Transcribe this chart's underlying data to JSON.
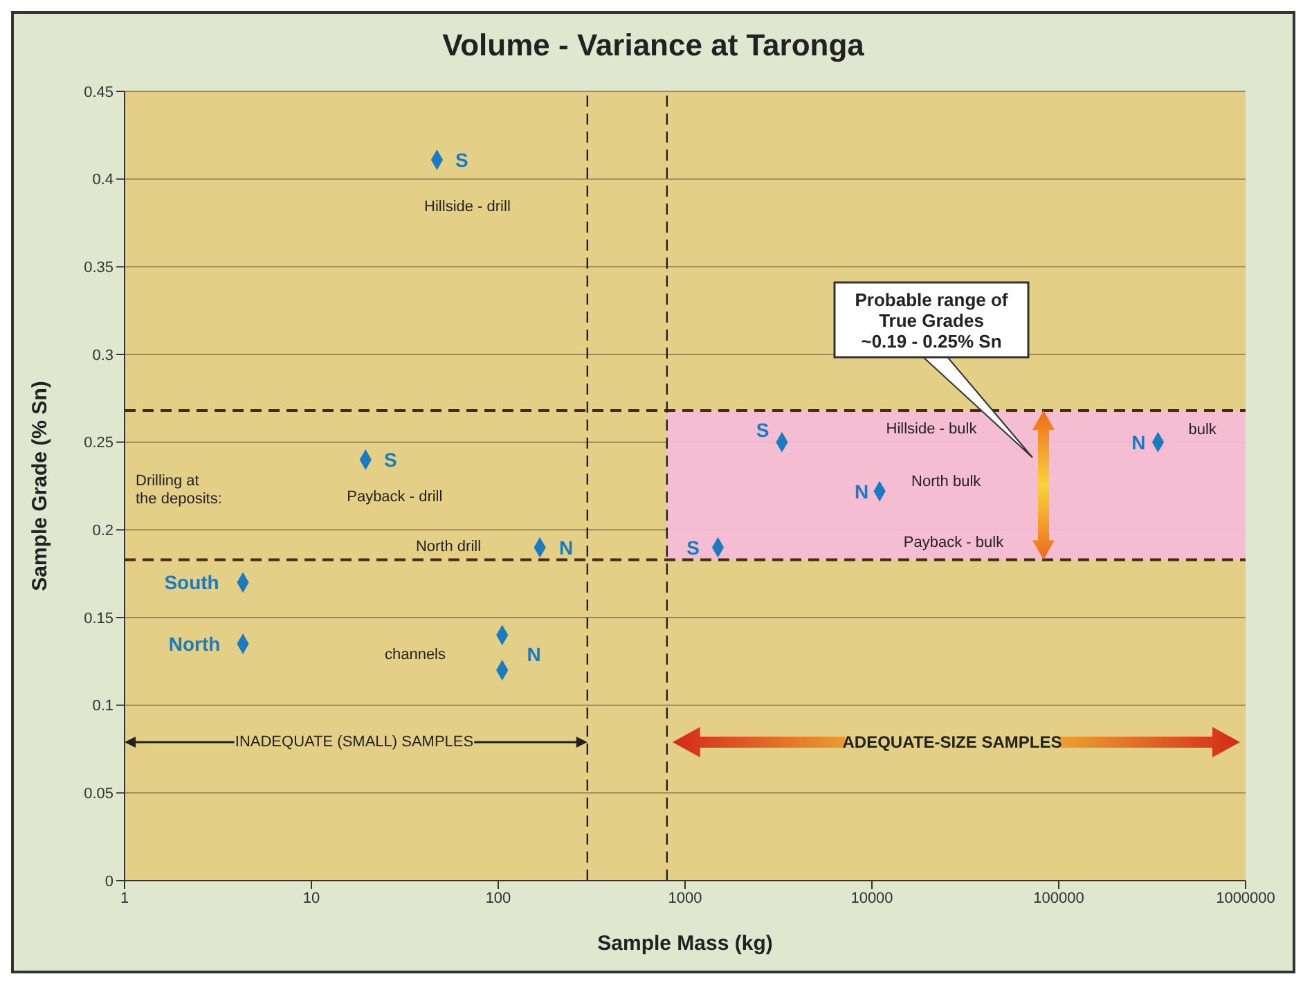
{
  "chart_data": {
    "type": "scatter",
    "title": "Volume - Variance at Taronga",
    "xlabel": "Sample Mass (kg)",
    "ylabel": "Sample Grade (% Sn)",
    "x": [
      47,
      19.5,
      167,
      4.3,
      4.3,
      105,
      105,
      3300,
      11000,
      1500,
      340000
    ],
    "series": [
      {
        "color": "#1b7bc0",
        "values": [
          0.411,
          0.24,
          0.19,
          0.17,
          0.135,
          0.14,
          0.12,
          0.25,
          0.222,
          0.19,
          0.25
        ]
      }
    ],
    "marker": "diamond",
    "log": "x",
    "grid": "y",
    "xlim": [
      1,
      1000000
    ],
    "xticks": [
      1,
      10,
      100,
      1000,
      10000,
      100000,
      1000000
    ],
    "ylim": [
      0,
      0.45
    ],
    "yticks": [
      0,
      0.05,
      0.1,
      0.15,
      0.2,
      0.25,
      0.3,
      0.35,
      0.4,
      0.45
    ],
    "ref_lines": [
      {
        "axis": "y",
        "value": 0.268,
        "line_style": "dashed"
      },
      {
        "axis": "y",
        "value": 0.183,
        "line_style": "dashed"
      },
      {
        "axis": "x",
        "value": 300,
        "line_style": "dashed"
      },
      {
        "axis": "x",
        "value": 800,
        "line_style": "dashed"
      }
    ],
    "bands": [
      {
        "axis": "y",
        "from": 0.183,
        "to": 0.268,
        "color": "#f4bcd6"
      }
    ],
    "annotations": [
      {
        "text": "S",
        "x": 47,
        "y": 0.411
      },
      {
        "text": "Hillside - drill",
        "x": 47,
        "y": 0.411
      },
      {
        "text": "S",
        "x": 19.5,
        "y": 0.24
      },
      {
        "text": "Payback - drill",
        "x": 19.5,
        "y": 0.24
      },
      "Drilling at\nthe deposits:",
      "North drill",
      {
        "text": "N",
        "x": 167,
        "y": 0.19
      },
      {
        "text": "South",
        "x": 4.3,
        "y": 0.17
      },
      {
        "text": "North",
        "x": 4.3,
        "y": 0.135
      },
      "channels",
      {
        "text": "N",
        "x": 105,
        "y": 0.14
      },
      {
        "text": "S",
        "x": 3300,
        "y": 0.25
      },
      "Hillside - bulk",
      {
        "text": "N",
        "x": 11000,
        "y": 0.222
      },
      {
        "text": "North bulk",
        "x": 11000,
        "y": 0.222
      },
      {
        "text": "S",
        "x": 1500,
        "y": 0.19
      },
      "Payback - bulk",
      {
        "text": "N",
        "x": 340000,
        "y": 0.25
      },
      {
        "text": "bulk",
        "x": 340000,
        "y": 0.25
      },
      "Probable range of\nTrue Grades\n~0.19 - 0.25% Sn",
      "INADEQUATE (SMALL) SAMPLES",
      "ADEQUATE-SIZE SAMPLES"
    ]
  }
}
